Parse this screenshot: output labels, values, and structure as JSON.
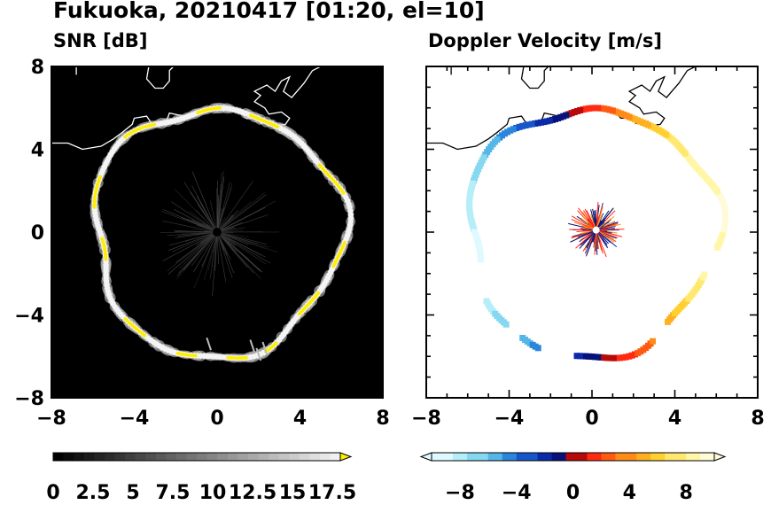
{
  "figure": {
    "title": "Fukuoka, 20210417 [01:20, el=10]"
  },
  "chart_data": [
    {
      "type": "heatmap",
      "title": "SNR [dB]",
      "xlim": [
        -8,
        8
      ],
      "ylim": [
        -8,
        8
      ],
      "x_ticks": [
        "−8",
        "−4",
        "0",
        "4",
        "8"
      ],
      "y_ticks": [
        "8",
        "4",
        "0",
        "−4",
        "−8"
      ],
      "background": "#000000",
      "ring": {
        "description_radius_km": 6.0,
        "edge_color": "#e8e8e8",
        "max_color": "#ffee00"
      },
      "colorbar": {
        "labels": [
          "0",
          "2.5",
          "5",
          "7.5",
          "10",
          "12.5",
          "15",
          "17.5"
        ],
        "range": [
          0,
          18
        ],
        "colors_from": "#000000",
        "colors_to": "#f5f5f5",
        "extend_color": "#ffee00"
      }
    },
    {
      "type": "heatmap",
      "title": "Doppler Velocity [m/s]",
      "xlim": [
        -8,
        8
      ],
      "ylim": [
        -8,
        8
      ],
      "x_ticks": [
        "−8",
        "−4",
        "0",
        "4",
        "8"
      ],
      "y_ticks": [
        "8",
        "4",
        "0",
        "−4",
        "−8"
      ],
      "background": "#ffffff",
      "colorbar": {
        "labels": [
          "−8",
          "−4",
          "0",
          "4",
          "8"
        ],
        "range": [
          -10,
          10
        ],
        "colors": [
          "#dffaff",
          "#b5eef8",
          "#86d7f0",
          "#55b6e8",
          "#2a86db",
          "#1656c8",
          "#0a2aa8",
          "#06127a",
          "#b80a0a",
          "#ff2a10",
          "#ff5a10",
          "#ff8c18",
          "#ffb020",
          "#ffd030",
          "#ffe870",
          "#fff6a8",
          "#fffbd8"
        ]
      }
    }
  ]
}
